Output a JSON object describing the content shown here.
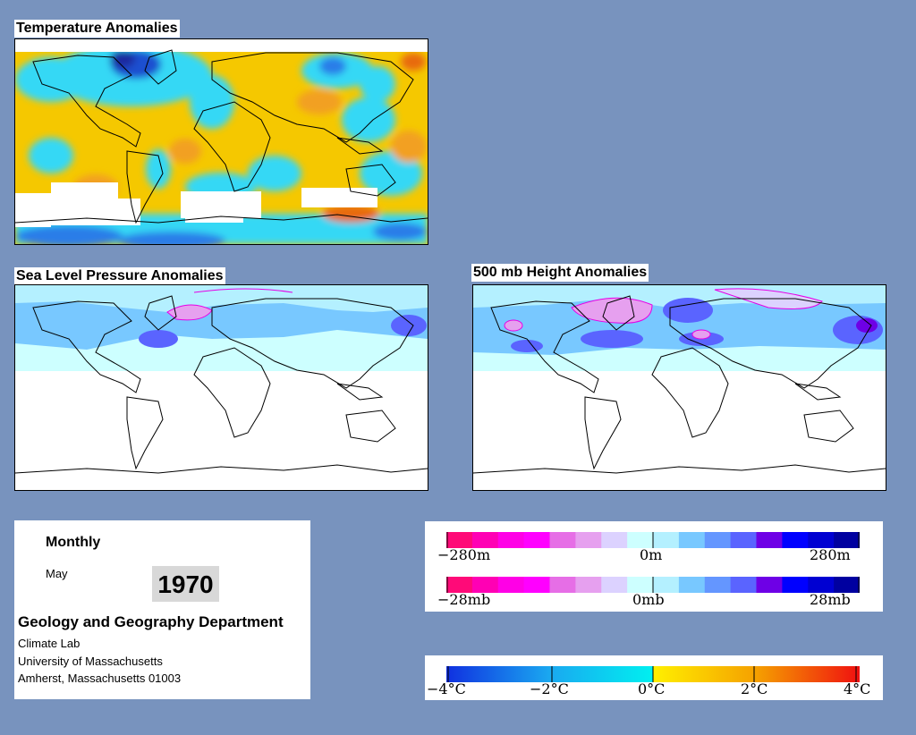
{
  "panels": {
    "temperature": {
      "title": "Temperature Anomalies"
    },
    "slp": {
      "title": "Sea Level Pressure Anomalies"
    },
    "height500": {
      "title": "500 mb Height Anomalies"
    }
  },
  "info": {
    "period": "Monthly",
    "month": "May",
    "year": "1970",
    "department": "Geology and Geography Department",
    "lines": [
      "Climate Lab",
      "University of Massachusetts",
      "Amherst, Massachusetts 01003"
    ]
  },
  "legends": {
    "height": {
      "labels": [
        "−280m",
        "0m",
        "280m"
      ],
      "colors": [
        "#ff0a78",
        "#ff00b4",
        "#ff00e6",
        "#ff00ff",
        "#e66ee6",
        "#e6a0ef",
        "#dcd2ff",
        "#cdffff",
        "#b4f0ff",
        "#78c8ff",
        "#6496ff",
        "#5a64ff",
        "#6e00e6",
        "#0000ff",
        "#0000d2",
        "#0000a0"
      ]
    },
    "pressure": {
      "labels": [
        "−28mb",
        "0mb",
        "28mb"
      ],
      "colors": [
        "#ff0a78",
        "#ff00b4",
        "#ff00e6",
        "#ff00ff",
        "#e66ee6",
        "#e6a0ef",
        "#dcd2ff",
        "#cdffff",
        "#b4f0ff",
        "#78c8ff",
        "#6496ff",
        "#5a64ff",
        "#6e00e6",
        "#0000ff",
        "#0000d2",
        "#0000a0"
      ]
    },
    "temperature": {
      "labels": [
        "−4°C",
        "−2°C",
        "0°C",
        "2°C",
        "4°C"
      ]
    }
  }
}
